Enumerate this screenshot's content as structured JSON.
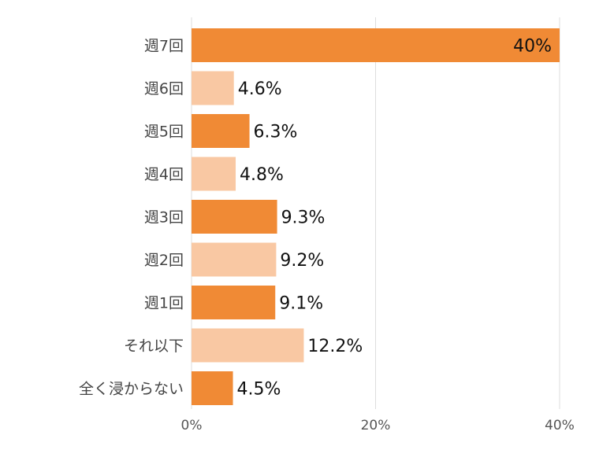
{
  "chart_data": {
    "type": "bar",
    "orientation": "horizontal",
    "categories": [
      "週7回",
      "週6回",
      "週5回",
      "週4回",
      "週3回",
      "週2回",
      "週1回",
      "それ以下",
      "全く浸からない"
    ],
    "values": [
      40,
      4.6,
      6.3,
      4.8,
      9.3,
      9.2,
      9.1,
      12.2,
      4.5
    ],
    "value_labels": [
      "40%",
      "4.6%",
      "6.3%",
      "4.8%",
      "9.3%",
      "9.2%",
      "9.1%",
      "12.2%",
      "4.5%"
    ],
    "xlim": [
      0,
      40
    ],
    "x_ticks": [
      0,
      20,
      40
    ],
    "x_tick_labels": [
      "0%",
      "20%",
      "40%"
    ],
    "grid": true,
    "colors": [
      "#f08a35",
      "#f9c8a3"
    ],
    "value_label_inside_first": true,
    "title": "",
    "xlabel": "",
    "ylabel": ""
  }
}
